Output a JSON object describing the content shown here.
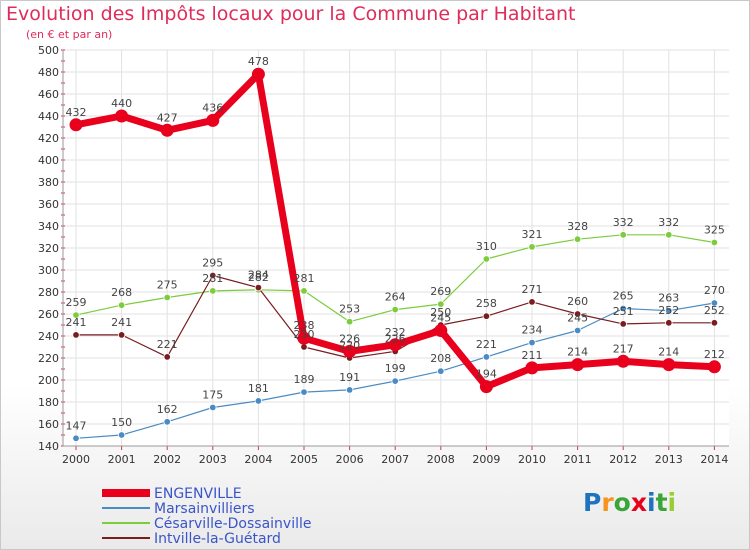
{
  "chart_data": {
    "type": "line",
    "title": "Evolution des Impôts locaux pour la Commune par Habitant",
    "subtitle": "(en € et par an)",
    "x": [
      "2000",
      "2001",
      "2002",
      "2003",
      "2004",
      "2005",
      "2006",
      "2007",
      "2008",
      "2009",
      "2010",
      "2011",
      "2012",
      "2013",
      "2014"
    ],
    "ylim": [
      140,
      500
    ],
    "yticks": [
      140,
      160,
      180,
      200,
      220,
      240,
      260,
      280,
      300,
      320,
      340,
      360,
      380,
      400,
      420,
      440,
      460,
      480,
      500
    ],
    "grid": true,
    "legend_position": "bottom-left",
    "series": [
      {
        "name": "ENGENVILLE",
        "color": "#e8001c",
        "values": [
          432,
          440,
          427,
          436,
          478,
          238,
          226,
          232,
          245,
          194,
          211,
          214,
          217,
          214,
          212
        ],
        "labels": [
          "432",
          "440",
          "427",
          "436",
          "478",
          "238",
          "226",
          "232",
          "245",
          "194",
          "211",
          "214",
          "217",
          "214",
          "212"
        ]
      },
      {
        "name": "Marsainvilliers",
        "color": "#4a8bc4",
        "values": [
          147,
          150,
          162,
          175,
          181,
          189,
          191,
          199,
          208,
          221,
          234,
          245,
          265,
          263,
          270
        ],
        "labels": [
          "147",
          "150",
          "162",
          "175",
          "181",
          "189",
          "191",
          "199",
          "208",
          "221",
          "234",
          "245",
          "265",
          "263",
          "270"
        ]
      },
      {
        "name": "Césarville-Dossainville",
        "color": "#7ccc3c",
        "values": [
          259,
          268,
          275,
          281,
          282,
          281,
          253,
          264,
          269,
          310,
          321,
          328,
          332,
          332,
          325
        ],
        "labels": [
          "259",
          "268",
          "275",
          "281",
          "282",
          "281",
          "253",
          "264",
          "269",
          "310",
          "321",
          "328",
          "332",
          "332",
          "325"
        ]
      },
      {
        "name": "Intville-la-Guétard",
        "color": "#7a1d20",
        "values": [
          241,
          241,
          221,
          295,
          284,
          230,
          220,
          226,
          250,
          258,
          271,
          260,
          251,
          252,
          252
        ],
        "labels": [
          "241",
          "241",
          "221",
          "295",
          "284",
          "230",
          "220",
          "226",
          "250",
          "258",
          "271",
          "260",
          "251",
          "252",
          "252"
        ]
      }
    ]
  },
  "logo": {
    "letters": [
      "P",
      "r",
      "o",
      "x",
      "i",
      "t",
      "i"
    ]
  }
}
